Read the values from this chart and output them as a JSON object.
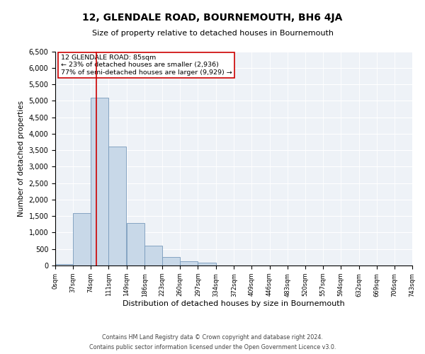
{
  "title": "12, GLENDALE ROAD, BOURNEMOUTH, BH6 4JA",
  "subtitle": "Size of property relative to detached houses in Bournemouth",
  "xlabel": "Distribution of detached houses by size in Bournemouth",
  "ylabel": "Number of detached properties",
  "footer_line1": "Contains HM Land Registry data © Crown copyright and database right 2024.",
  "footer_line2": "Contains public sector information licensed under the Open Government Licence v3.0.",
  "annotation_title": "12 GLENDALE ROAD: 85sqm",
  "annotation_line1": "← 23% of detached houses are smaller (2,936)",
  "annotation_line2": "77% of semi-detached houses are larger (9,929) →",
  "property_size_sqm": 85,
  "bin_edges": [
    0,
    37,
    74,
    111,
    149,
    186,
    223,
    260,
    297,
    334,
    372,
    409,
    446,
    483,
    520,
    557,
    594,
    632,
    669,
    706,
    743
  ],
  "bin_labels": [
    "0sqm",
    "37sqm",
    "74sqm",
    "111sqm",
    "149sqm",
    "186sqm",
    "223sqm",
    "260sqm",
    "297sqm",
    "334sqm",
    "372sqm",
    "409sqm",
    "446sqm",
    "483sqm",
    "520sqm",
    "557sqm",
    "594sqm",
    "632sqm",
    "669sqm",
    "706sqm",
    "743sqm"
  ],
  "bar_heights": [
    50,
    1600,
    5100,
    3600,
    1300,
    600,
    250,
    120,
    90,
    0,
    0,
    0,
    0,
    0,
    0,
    0,
    0,
    0,
    0,
    0
  ],
  "bar_color": "#c8d8e8",
  "bar_edge_color": "#7799bb",
  "vline_x": 85,
  "vline_color": "#cc0000",
  "annotation_box_color": "#cc0000",
  "background_color": "#eef2f7",
  "ylim": [
    0,
    6500
  ],
  "yticks": [
    0,
    500,
    1000,
    1500,
    2000,
    2500,
    3000,
    3500,
    4000,
    4500,
    5000,
    5500,
    6000,
    6500
  ],
  "title_fontsize": 10,
  "subtitle_fontsize": 8,
  "ylabel_fontsize": 7.5,
  "xlabel_fontsize": 8,
  "ytick_fontsize": 7,
  "xtick_fontsize": 6,
  "annotation_fontsize": 6.8,
  "footer_fontsize": 5.8
}
